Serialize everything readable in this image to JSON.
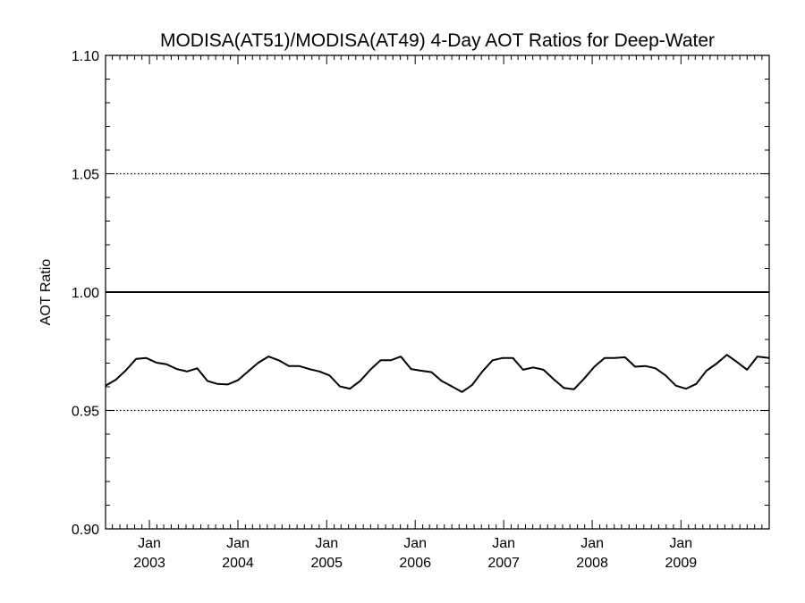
{
  "chart_data": {
    "type": "line",
    "title": "MODISA(AT51)/MODISA(AT49) 4-Day AOT Ratios for Deep-Water",
    "xlabel": "",
    "ylabel": "AOT Ratio",
    "xlim": [
      "2002-07-04",
      "2009-12-31"
    ],
    "ylim": [
      0.9,
      1.1
    ],
    "yticks": [
      "0.90",
      "0.95",
      "1.00",
      "1.05",
      "1.10"
    ],
    "xticks": [
      {
        "date": "2003-01-01",
        "month": "Jan",
        "year": "2003"
      },
      {
        "date": "2004-01-01",
        "month": "Jan",
        "year": "2004"
      },
      {
        "date": "2005-01-01",
        "month": "Jan",
        "year": "2005"
      },
      {
        "date": "2006-01-01",
        "month": "Jan",
        "year": "2006"
      },
      {
        "date": "2007-01-01",
        "month": "Jan",
        "year": "2007"
      },
      {
        "date": "2008-01-01",
        "month": "Jan",
        "year": "2008"
      },
      {
        "date": "2009-01-01",
        "month": "Jan",
        "year": "2009"
      }
    ],
    "grid_y_dotted": true,
    "reference_line": 1.0,
    "series": [
      {
        "x": [
          "2002-07-04",
          "2002-08-15",
          "2002-09-26",
          "2002-11-07",
          "2002-12-19",
          "2003-01-30",
          "2003-03-13",
          "2003-04-24",
          "2003-06-05",
          "2003-07-17",
          "2003-08-28",
          "2003-10-09",
          "2003-11-20",
          "2004-01-01",
          "2004-02-12",
          "2004-03-25",
          "2004-05-06",
          "2004-06-17",
          "2004-07-29",
          "2004-09-09",
          "2004-10-21",
          "2004-12-02",
          "2005-01-13",
          "2005-02-24",
          "2005-04-07",
          "2005-05-19",
          "2005-06-30",
          "2005-08-11",
          "2005-09-22",
          "2005-11-03",
          "2005-12-15",
          "2006-01-26",
          "2006-03-09",
          "2006-04-20",
          "2006-06-01",
          "2006-07-13",
          "2006-08-24",
          "2006-10-05",
          "2006-11-16",
          "2006-12-28",
          "2007-02-08",
          "2007-03-22",
          "2007-05-03",
          "2007-06-14",
          "2007-07-26",
          "2007-09-06",
          "2007-10-18",
          "2007-11-29",
          "2008-01-10",
          "2008-02-21",
          "2008-04-03",
          "2008-05-15",
          "2008-06-26",
          "2008-08-07",
          "2008-09-18",
          "2008-10-30",
          "2008-12-11",
          "2009-01-22",
          "2009-03-05",
          "2009-04-16",
          "2009-05-28",
          "2009-07-09",
          "2009-08-20",
          "2009-10-01",
          "2009-11-12",
          "2009-12-31"
        ],
        "y": [
          0.9605,
          0.963,
          0.967,
          0.9718,
          0.9722,
          0.9702,
          0.9695,
          0.9675,
          0.9665,
          0.9678,
          0.9625,
          0.9612,
          0.961,
          0.9628,
          0.9665,
          0.9702,
          0.9728,
          0.9712,
          0.9688,
          0.9688,
          0.9675,
          0.9665,
          0.9648,
          0.9602,
          0.9592,
          0.9625,
          0.9672,
          0.9712,
          0.9712,
          0.9728,
          0.9675,
          0.9668,
          0.9662,
          0.9625,
          0.9602,
          0.9578,
          0.9608,
          0.9665,
          0.9712,
          0.9722,
          0.9722,
          0.9672,
          0.9682,
          0.9672,
          0.9632,
          0.9595,
          0.959,
          0.9635,
          0.9685,
          0.9722,
          0.9722,
          0.9725,
          0.9685,
          0.9688,
          0.9678,
          0.9648,
          0.9605,
          0.9592,
          0.9612,
          0.9668,
          0.9698,
          0.9735,
          0.9705,
          0.9672,
          0.9728,
          0.9722
        ]
      }
    ]
  }
}
